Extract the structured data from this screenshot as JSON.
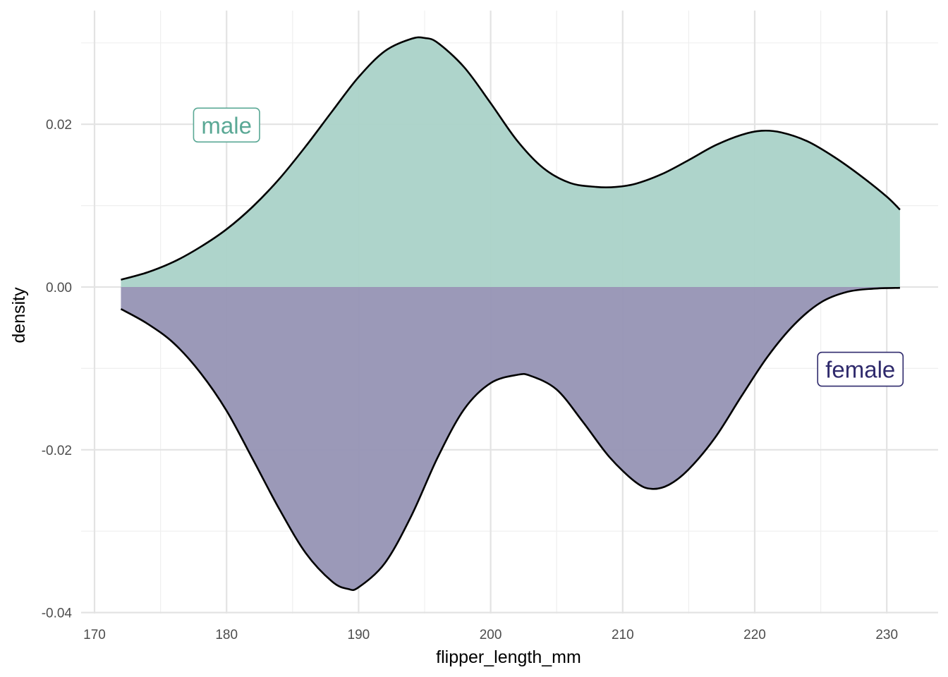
{
  "chart_data": {
    "type": "area",
    "xlabel": "flipper_length_mm",
    "ylabel": "density",
    "xlim": [
      170,
      231
    ],
    "ylim": [
      -0.04,
      0.033
    ],
    "x_ticks": [
      170,
      180,
      190,
      200,
      210,
      220,
      230
    ],
    "x_tick_labels": [
      "170",
      "180",
      "190",
      "200",
      "210",
      "220",
      "230"
    ],
    "y_ticks": [
      -0.04,
      -0.02,
      0.0,
      0.02
    ],
    "y_tick_labels": [
      "-0.04",
      "-0.02",
      "0.00",
      "0.02"
    ],
    "grid": true,
    "series": [
      {
        "name": "male",
        "color": "#5aa895",
        "fill": "#abd3c9",
        "points": [
          [
            172,
            0.0009
          ],
          [
            174,
            0.0018
          ],
          [
            176,
            0.0031
          ],
          [
            178,
            0.0049
          ],
          [
            180,
            0.0071
          ],
          [
            182,
            0.0099
          ],
          [
            184,
            0.0133
          ],
          [
            186,
            0.0173
          ],
          [
            188,
            0.0216
          ],
          [
            190,
            0.0258
          ],
          [
            192,
            0.029
          ],
          [
            194,
            0.0305
          ],
          [
            195,
            0.0306
          ],
          [
            196,
            0.03
          ],
          [
            198,
            0.027
          ],
          [
            200,
            0.0226
          ],
          [
            202,
            0.018
          ],
          [
            204,
            0.0146
          ],
          [
            206,
            0.0128
          ],
          [
            208,
            0.0123
          ],
          [
            209.5,
            0.0123
          ],
          [
            211,
            0.0127
          ],
          [
            213,
            0.0139
          ],
          [
            215,
            0.0156
          ],
          [
            217,
            0.0174
          ],
          [
            219,
            0.0187
          ],
          [
            220.5,
            0.0192
          ],
          [
            222,
            0.019
          ],
          [
            224,
            0.0179
          ],
          [
            226,
            0.016
          ],
          [
            228,
            0.0137
          ],
          [
            230,
            0.0111
          ],
          [
            231,
            0.0095
          ]
        ]
      },
      {
        "name": "female",
        "color": "#2f2a6c",
        "fill": "#9896b6",
        "points": [
          [
            172,
            -0.0027
          ],
          [
            174,
            -0.0045
          ],
          [
            176,
            -0.0069
          ],
          [
            178,
            -0.0105
          ],
          [
            180,
            -0.0152
          ],
          [
            182,
            -0.0212
          ],
          [
            184,
            -0.0273
          ],
          [
            186,
            -0.0327
          ],
          [
            188,
            -0.0362
          ],
          [
            189.2,
            -0.0371
          ],
          [
            190,
            -0.0369
          ],
          [
            192,
            -0.0339
          ],
          [
            194,
            -0.0281
          ],
          [
            196,
            -0.0209
          ],
          [
            198,
            -0.015
          ],
          [
            200,
            -0.0118
          ],
          [
            202,
            -0.0108
          ],
          [
            203,
            -0.0109
          ],
          [
            205,
            -0.0126
          ],
          [
            207,
            -0.0166
          ],
          [
            209,
            -0.0209
          ],
          [
            211,
            -0.024
          ],
          [
            212.2,
            -0.0248
          ],
          [
            213.5,
            -0.0243
          ],
          [
            215,
            -0.0224
          ],
          [
            217,
            -0.0185
          ],
          [
            219,
            -0.0134
          ],
          [
            221,
            -0.0085
          ],
          [
            223,
            -0.0046
          ],
          [
            225,
            -0.0019
          ],
          [
            227,
            -0.0006
          ],
          [
            229,
            -0.0002
          ],
          [
            231,
            -0.0001
          ]
        ]
      }
    ],
    "annotations": [
      {
        "text": "male",
        "x": 180,
        "y": 0.0199,
        "color": "#5aa895"
      },
      {
        "text": "female",
        "x": 228,
        "y": -0.0101,
        "color": "#2f2a6c"
      }
    ]
  }
}
